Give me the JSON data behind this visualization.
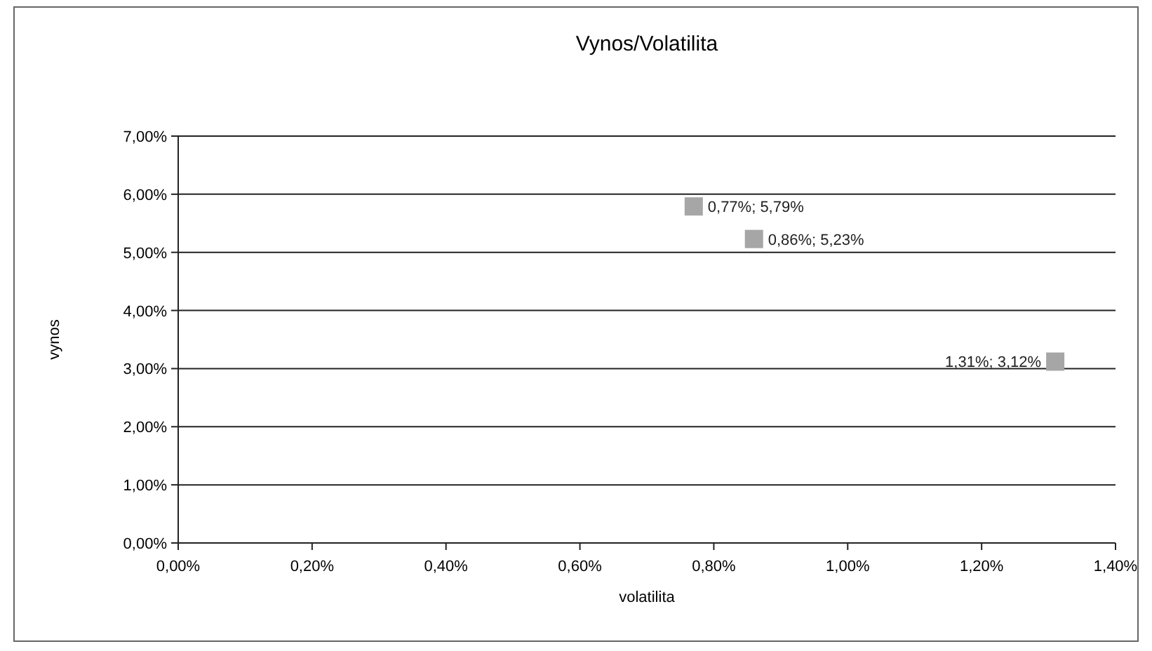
{
  "chart_data": {
    "type": "scatter",
    "title": "Vynos/Volatilita",
    "xlabel": "volatilita",
    "ylabel": "vynos",
    "x": [
      0.77,
      0.86,
      1.31
    ],
    "series": [
      {
        "color": "#a6a6a6",
        "values": [
          5.79,
          5.23,
          3.12
        ],
        "value_labels": [
          "0,77%; 5,79%",
          "0,86%; 5,23%",
          "1,31%; 3,12%"
        ]
      }
    ],
    "marker": "square",
    "grid": "y",
    "xlim": [
      0,
      1.4
    ],
    "xticks": [
      {
        "value": 0,
        "label": "0,00%"
      },
      {
        "value": 0.2,
        "label": "0,20%"
      },
      {
        "value": 0.4,
        "label": "0,40%"
      },
      {
        "value": 0.6,
        "label": "0,60%"
      },
      {
        "value": 0.8,
        "label": "0,80%"
      },
      {
        "value": 1,
        "label": "1,00%"
      },
      {
        "value": 1.2,
        "label": "1,20%"
      },
      {
        "value": 1.4,
        "label": "1,40%"
      }
    ],
    "ylim": [
      0,
      7
    ],
    "yticks": [
      {
        "value": 0,
        "label": "0,00%"
      },
      {
        "value": 1,
        "label": "1,00%"
      },
      {
        "value": 2,
        "label": "2,00%"
      },
      {
        "value": 3,
        "label": "3,00%"
      },
      {
        "value": 4,
        "label": "4,00%"
      },
      {
        "value": 5,
        "label": "5,00%"
      },
      {
        "value": 6,
        "label": "6,00%"
      },
      {
        "value": 7,
        "label": "7,00%"
      }
    ]
  }
}
